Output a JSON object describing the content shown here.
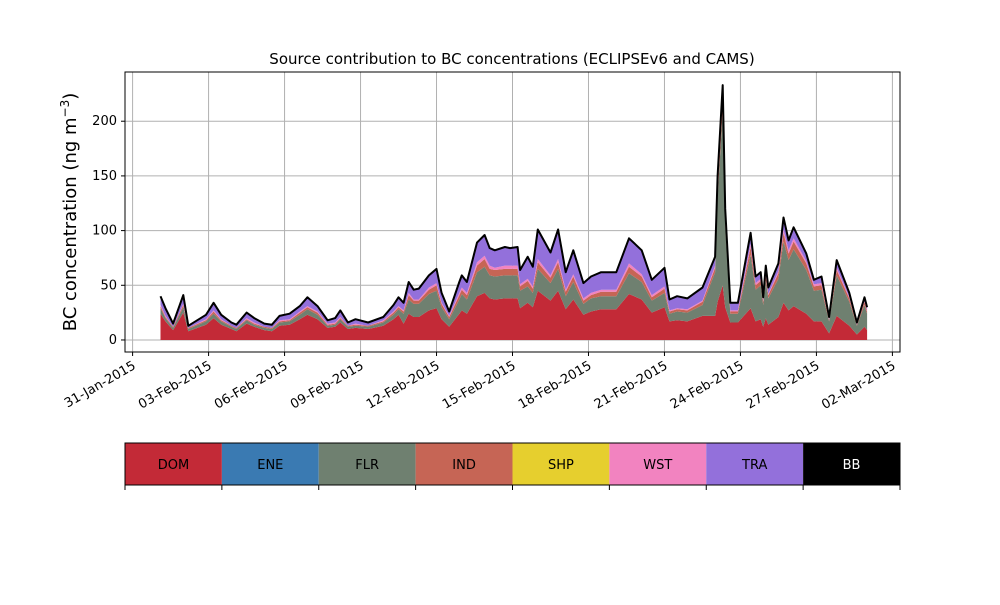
{
  "chart_data": {
    "type": "area",
    "stacked": true,
    "title": "Source contribution to BC concentrations (ECLIPSEv6 and CAMS)",
    "xlabel": "",
    "ylabel": "BC concentration (ng m",
    "ylabel_sup": "−3",
    "ylabel_close": ")",
    "x_unit": "days since 31-Jan-2015",
    "xlim": [
      -0.3,
      30.3
    ],
    "ylim": [
      -11,
      245
    ],
    "grid": true,
    "yticks": [
      0,
      50,
      100,
      150,
      200
    ],
    "xticks": [
      0,
      3,
      6,
      9,
      12,
      15,
      18,
      21,
      24,
      27,
      30
    ],
    "xtick_labels": [
      "31-Jan-2015",
      "03-Feb-2015",
      "06-Feb-2015",
      "09-Feb-2015",
      "12-Feb-2015",
      "15-Feb-2015",
      "18-Feb-2015",
      "21-Feb-2015",
      "24-Feb-2015",
      "27-Feb-2015",
      "02-Mar-2015"
    ],
    "legend": {
      "placement": "below",
      "entries": [
        {
          "name": "DOM",
          "color": "#c32a37",
          "text_color": "#000000"
        },
        {
          "name": "ENE",
          "color": "#3a7ab2",
          "text_color": "#000000"
        },
        {
          "name": "FLR",
          "color": "#6f8070",
          "text_color": "#000000"
        },
        {
          "name": "IND",
          "color": "#c66555",
          "text_color": "#000000"
        },
        {
          "name": "SHP",
          "color": "#e6cf2e",
          "text_color": "#000000"
        },
        {
          "name": "WST",
          "color": "#f283c0",
          "text_color": "#000000"
        },
        {
          "name": "TRA",
          "color": "#9370db",
          "text_color": "#000000"
        },
        {
          "name": "BB",
          "color": "#000000",
          "text_color": "#ffffff"
        }
      ]
    },
    "x": [
      1.1,
      1.3,
      1.6,
      2.0,
      2.2,
      2.9,
      3.2,
      3.5,
      3.9,
      4.1,
      4.5,
      4.8,
      5.2,
      5.5,
      5.8,
      6.2,
      6.6,
      6.9,
      7.3,
      7.7,
      8.0,
      8.2,
      8.5,
      8.8,
      9.3,
      9.9,
      10.3,
      10.5,
      10.7,
      10.9,
      11.1,
      11.3,
      11.7,
      12.0,
      12.2,
      12.5,
      12.9,
      13.0,
      13.2,
      13.6,
      13.9,
      14.1,
      14.3,
      14.7,
      14.9,
      15.2,
      15.3,
      15.6,
      15.8,
      16.0,
      16.5,
      16.8,
      17.1,
      17.4,
      17.8,
      18.1,
      18.5,
      19.1,
      19.6,
      20.1,
      20.5,
      21.0,
      21.2,
      21.5,
      21.9,
      22.5,
      23.0,
      23.1,
      23.3,
      23.4,
      23.6,
      23.9,
      24.4,
      24.6,
      24.8,
      24.9,
      25.0,
      25.1,
      25.5,
      25.7,
      25.9,
      26.1,
      26.6,
      26.9,
      27.2,
      27.5,
      27.8,
      28.3,
      28.6,
      28.9,
      29.0
    ],
    "series": [
      {
        "name": "DOM",
        "color": "#c32a37",
        "values": [
          24,
          17,
          9,
          25,
          8,
          14,
          20,
          14,
          10,
          8,
          15,
          12,
          9,
          8,
          13,
          14,
          19,
          23,
          19,
          11,
          12,
          16,
          10,
          11,
          10,
          13,
          19,
          23,
          15,
          24,
          21,
          21,
          27,
          29,
          19,
          12,
          24,
          27,
          24,
          40,
          43,
          38,
          37,
          38,
          38,
          38,
          29,
          34,
          30,
          45,
          36,
          45,
          28,
          37,
          23,
          26,
          28,
          28,
          42,
          37,
          25,
          30,
          17,
          18,
          17,
          22,
          22,
          35,
          50,
          30,
          16,
          16,
          29,
          17,
          19,
          12,
          20,
          14,
          21,
          34,
          27,
          31,
          24,
          17,
          17,
          6,
          22,
          13,
          5,
          12,
          9
        ]
      },
      {
        "name": "FLR",
        "color": "#6f8070",
        "values": [
          5,
          3,
          2,
          5,
          2,
          3,
          4,
          3,
          2,
          2,
          3,
          2,
          2,
          2,
          3,
          3,
          4,
          5,
          4,
          2,
          2,
          3,
          2,
          2,
          2,
          3,
          4,
          5,
          9,
          13,
          12,
          12,
          15,
          16,
          11,
          7,
          13,
          15,
          13,
          22,
          24,
          21,
          21,
          21,
          21,
          21,
          16,
          15,
          13,
          20,
          16,
          20,
          12,
          16,
          10,
          12,
          12,
          12,
          19,
          16,
          11,
          13,
          7,
          8,
          8,
          10,
          40,
          95,
          160,
          75,
          8,
          8,
          49,
          29,
          31,
          20,
          34,
          24,
          35,
          56,
          46,
          52,
          40,
          28,
          29,
          11,
          37,
          22,
          8,
          20,
          15
        ]
      },
      {
        "name": "IND",
        "color": "#c66555",
        "values": [
          2,
          1,
          1,
          2,
          1,
          1,
          2,
          1,
          1,
          1,
          1,
          1,
          1,
          1,
          1,
          1,
          2,
          2,
          2,
          1,
          1,
          1,
          1,
          1,
          1,
          1,
          2,
          2,
          2,
          4,
          3,
          3,
          4,
          5,
          3,
          2,
          4,
          4,
          4,
          6,
          7,
          6,
          6,
          6,
          6,
          6,
          4,
          5,
          4,
          6,
          5,
          6,
          4,
          5,
          3,
          3,
          4,
          4,
          6,
          5,
          3,
          4,
          2,
          2,
          2,
          3,
          4,
          7,
          10,
          6,
          2,
          2,
          7,
          4,
          4,
          3,
          5,
          3,
          5,
          8,
          6,
          7,
          6,
          4,
          4,
          1,
          5,
          3,
          1,
          3,
          2
        ]
      },
      {
        "name": "WST",
        "color": "#f283c0",
        "values": [
          1,
          1,
          0,
          1,
          0,
          1,
          1,
          1,
          0,
          0,
          1,
          1,
          0,
          0,
          1,
          1,
          1,
          1,
          1,
          1,
          1,
          1,
          0,
          1,
          0,
          1,
          1,
          1,
          1,
          2,
          1,
          1,
          2,
          2,
          1,
          1,
          2,
          2,
          2,
          3,
          3,
          3,
          2,
          3,
          3,
          3,
          2,
          2,
          2,
          3,
          2,
          3,
          2,
          2,
          2,
          2,
          2,
          2,
          3,
          2,
          2,
          2,
          1,
          1,
          1,
          1,
          2,
          4,
          6,
          3,
          1,
          1,
          3,
          2,
          2,
          1,
          2,
          1,
          2,
          3,
          3,
          3,
          2,
          2,
          2,
          1,
          2,
          1,
          0,
          1,
          1
        ]
      },
      {
        "name": "TRA",
        "color": "#9370db",
        "values": [
          8,
          7,
          3,
          8,
          2,
          4,
          7,
          4,
          3,
          3,
          5,
          4,
          3,
          3,
          4,
          5,
          5,
          8,
          5,
          3,
          4,
          6,
          3,
          4,
          3,
          3,
          6,
          8,
          7,
          10,
          9,
          10,
          11,
          13,
          9,
          4,
          10,
          11,
          10,
          18,
          19,
          16,
          16,
          17,
          16,
          17,
          13,
          20,
          18,
          27,
          21,
          27,
          16,
          22,
          14,
          15,
          16,
          16,
          23,
          22,
          14,
          17,
          10,
          11,
          10,
          12,
          8,
          9,
          7,
          6,
          7,
          7,
          10,
          6,
          6,
          3,
          7,
          6,
          7,
          11,
          9,
          10,
          7,
          4,
          6,
          2,
          7,
          4,
          2,
          3,
          3
        ]
      }
    ]
  }
}
